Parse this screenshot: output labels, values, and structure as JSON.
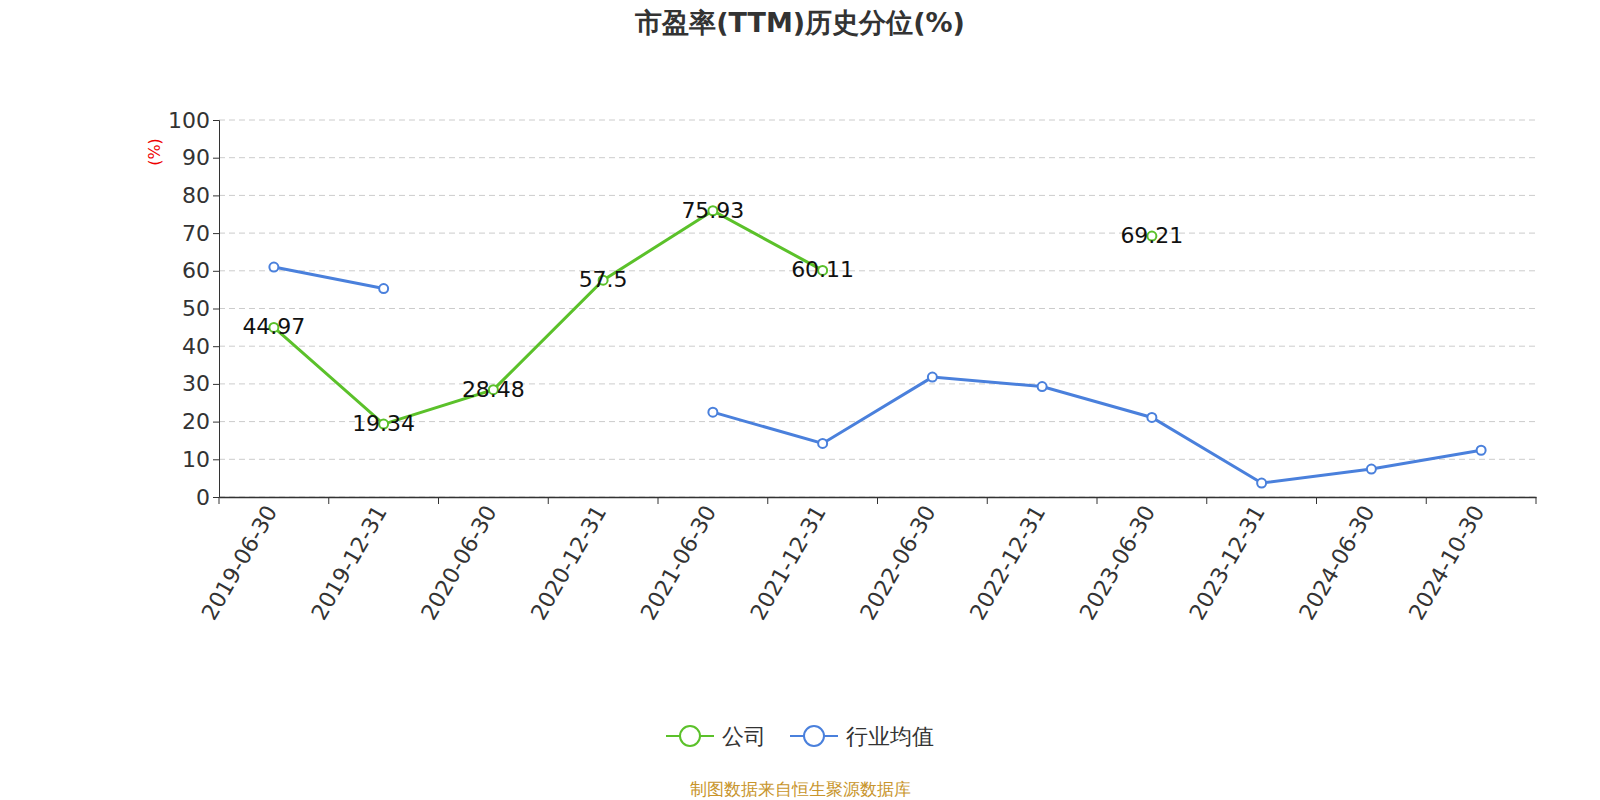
{
  "chart_data": {
    "type": "line",
    "title": "市盈率(TTM)历史分位(%)",
    "y_label": "(%)",
    "source": "制图数据来自恒生聚源数据库",
    "categories": [
      "2019-06-30",
      "2019-12-31",
      "2020-06-30",
      "2020-12-31",
      "2021-06-30",
      "2021-12-31",
      "2022-06-30",
      "2022-12-31",
      "2023-06-30",
      "2023-12-31",
      "2024-06-30",
      "2024-10-30"
    ],
    "series": [
      {
        "name": "公司",
        "color": "#5bc12a",
        "marker": "circle",
        "data_labels": true,
        "values": [
          44.97,
          19.34,
          28.48,
          57.5,
          75.93,
          60.11,
          null,
          null,
          69.21,
          null,
          null,
          null
        ]
      },
      {
        "name": "行业均值",
        "color": "#4a80dc",
        "marker": "circle",
        "data_labels": false,
        "values": [
          61.0,
          55.3,
          null,
          null,
          22.5,
          14.2,
          31.8,
          29.3,
          21.1,
          3.7,
          7.4,
          12.4
        ]
      }
    ],
    "ylim": [
      0,
      100
    ],
    "yticks": [
      0,
      10,
      20,
      30,
      40,
      50,
      60,
      70,
      80,
      90,
      100
    ],
    "grid": true,
    "legend": "bottom"
  }
}
